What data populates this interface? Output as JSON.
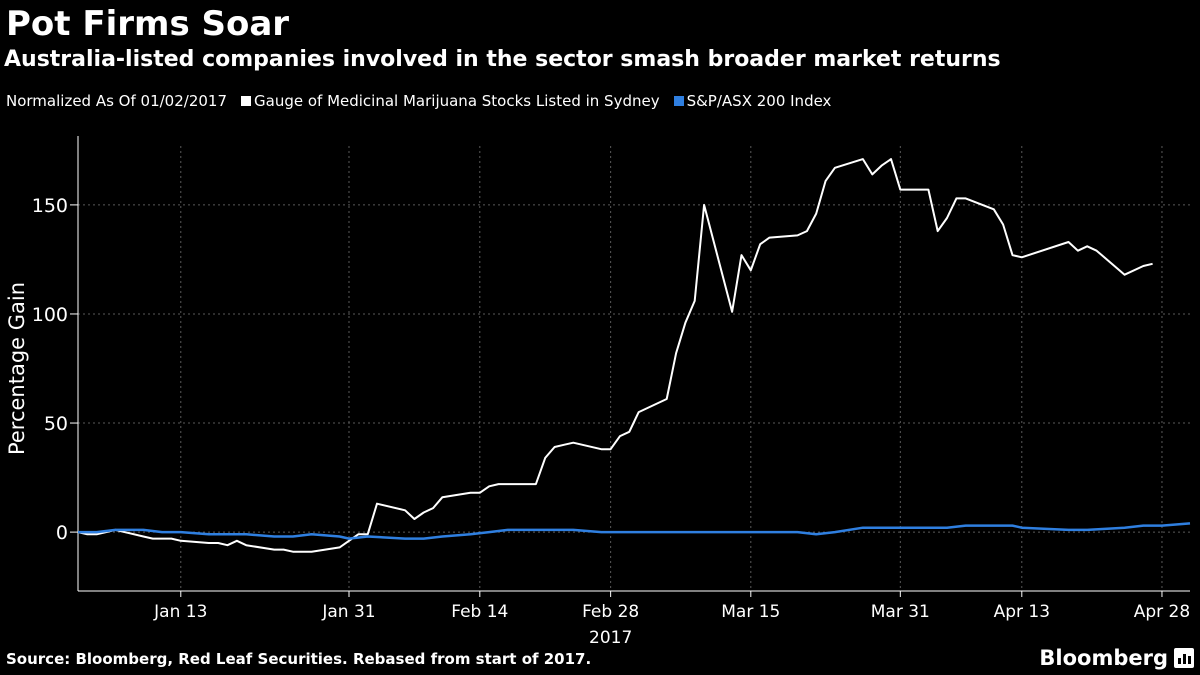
{
  "header": {
    "title": "Pot Firms Soar",
    "subtitle": "Australia-listed companies involved in the sector smash broader market returns"
  },
  "legend": {
    "note": "Normalized As Of 01/02/2017",
    "items": [
      {
        "label": "Gauge of Medicinal Marijuana Stocks Listed in Sydney",
        "color": "#ffffff"
      },
      {
        "label": "S&P/ASX 200 Index",
        "color": "#2f7fe0"
      }
    ]
  },
  "footer": {
    "source": "Source: Bloomberg, Red Leaf Securities. Rebased from start of 2017.",
    "brand": "Bloomberg",
    "brand_icon": "bloomberg-terminal-icon"
  },
  "chart_data": {
    "type": "line",
    "ylabel": "Percentage Gain",
    "xlabel": "2017",
    "ylim": [
      -27,
      177
    ],
    "yticks": [
      0,
      50,
      100,
      150
    ],
    "xlim": [
      "2017-01-02",
      "2017-05-01"
    ],
    "xticks": [
      {
        "date": "2017-01-13",
        "label": "Jan 13"
      },
      {
        "date": "2017-01-31",
        "label": "Jan 31"
      },
      {
        "date": "2017-02-14",
        "label": "Feb 14"
      },
      {
        "date": "2017-02-28",
        "label": "Feb 28"
      },
      {
        "date": "2017-03-15",
        "label": "Mar 15"
      },
      {
        "date": "2017-03-31",
        "label": "Mar 31"
      },
      {
        "date": "2017-04-13",
        "label": "Apr 13"
      },
      {
        "date": "2017-04-28",
        "label": "Apr 28"
      }
    ],
    "grid": true,
    "series": [
      {
        "name": "Gauge of Medicinal Marijuana Stocks Listed in Sydney",
        "color": "#ffffff",
        "points": [
          [
            "2017-01-02",
            0
          ],
          [
            "2017-01-03",
            -1
          ],
          [
            "2017-01-04",
            -1
          ],
          [
            "2017-01-05",
            0
          ],
          [
            "2017-01-06",
            1
          ],
          [
            "2017-01-09",
            -2
          ],
          [
            "2017-01-10",
            -3
          ],
          [
            "2017-01-11",
            -3
          ],
          [
            "2017-01-12",
            -3
          ],
          [
            "2017-01-13",
            -4
          ],
          [
            "2017-01-16",
            -5
          ],
          [
            "2017-01-17",
            -5
          ],
          [
            "2017-01-18",
            -6
          ],
          [
            "2017-01-19",
            -4
          ],
          [
            "2017-01-20",
            -6
          ],
          [
            "2017-01-23",
            -8
          ],
          [
            "2017-01-24",
            -8
          ],
          [
            "2017-01-25",
            -9
          ],
          [
            "2017-01-27",
            -9
          ],
          [
            "2017-01-30",
            -7
          ],
          [
            "2017-01-31",
            -4
          ],
          [
            "2017-02-01",
            -1
          ],
          [
            "2017-02-02",
            -1
          ],
          [
            "2017-02-03",
            13
          ],
          [
            "2017-02-06",
            10
          ],
          [
            "2017-02-07",
            6
          ],
          [
            "2017-02-08",
            9
          ],
          [
            "2017-02-09",
            11
          ],
          [
            "2017-02-10",
            16
          ],
          [
            "2017-02-13",
            18
          ],
          [
            "2017-02-14",
            18
          ],
          [
            "2017-02-15",
            21
          ],
          [
            "2017-02-16",
            22
          ],
          [
            "2017-02-17",
            22
          ],
          [
            "2017-02-20",
            22
          ],
          [
            "2017-02-21",
            34
          ],
          [
            "2017-02-22",
            39
          ],
          [
            "2017-02-23",
            40
          ],
          [
            "2017-02-24",
            41
          ],
          [
            "2017-02-27",
            38
          ],
          [
            "2017-02-28",
            38
          ],
          [
            "2017-03-01",
            44
          ],
          [
            "2017-03-02",
            46
          ],
          [
            "2017-03-03",
            55
          ],
          [
            "2017-03-06",
            61
          ],
          [
            "2017-03-07",
            82
          ],
          [
            "2017-03-08",
            96
          ],
          [
            "2017-03-09",
            106
          ],
          [
            "2017-03-10",
            150
          ],
          [
            "2017-03-13",
            101
          ],
          [
            "2017-03-14",
            127
          ],
          [
            "2017-03-15",
            120
          ],
          [
            "2017-03-16",
            132
          ],
          [
            "2017-03-17",
            135
          ],
          [
            "2017-03-20",
            136
          ],
          [
            "2017-03-21",
            138
          ],
          [
            "2017-03-22",
            146
          ],
          [
            "2017-03-23",
            161
          ],
          [
            "2017-03-24",
            167
          ],
          [
            "2017-03-27",
            171
          ],
          [
            "2017-03-28",
            164
          ],
          [
            "2017-03-29",
            168
          ],
          [
            "2017-03-30",
            171
          ],
          [
            "2017-03-31",
            157
          ],
          [
            "2017-04-03",
            157
          ],
          [
            "2017-04-04",
            138
          ],
          [
            "2017-04-05",
            144
          ],
          [
            "2017-04-06",
            153
          ],
          [
            "2017-04-07",
            153
          ],
          [
            "2017-04-10",
            148
          ],
          [
            "2017-04-11",
            141
          ],
          [
            "2017-04-12",
            127
          ],
          [
            "2017-04-13",
            126
          ],
          [
            "2017-04-18",
            133
          ],
          [
            "2017-04-19",
            129
          ],
          [
            "2017-04-20",
            131
          ],
          [
            "2017-04-21",
            129
          ],
          [
            "2017-04-24",
            118
          ],
          [
            "2017-04-26",
            122
          ],
          [
            "2017-04-27",
            123
          ]
        ]
      },
      {
        "name": "S&P/ASX 200 Index",
        "color": "#2f7fe0",
        "points": [
          [
            "2017-01-02",
            0
          ],
          [
            "2017-01-04",
            0
          ],
          [
            "2017-01-06",
            1
          ],
          [
            "2017-01-09",
            1
          ],
          [
            "2017-01-11",
            0
          ],
          [
            "2017-01-13",
            0
          ],
          [
            "2017-01-16",
            -1
          ],
          [
            "2017-01-18",
            -1
          ],
          [
            "2017-01-20",
            -1
          ],
          [
            "2017-01-23",
            -2
          ],
          [
            "2017-01-25",
            -2
          ],
          [
            "2017-01-27",
            -1
          ],
          [
            "2017-01-30",
            -2
          ],
          [
            "2017-01-31",
            -3
          ],
          [
            "2017-02-02",
            -2
          ],
          [
            "2017-02-06",
            -3
          ],
          [
            "2017-02-08",
            -3
          ],
          [
            "2017-02-10",
            -2
          ],
          [
            "2017-02-13",
            -1
          ],
          [
            "2017-02-15",
            0
          ],
          [
            "2017-02-17",
            1
          ],
          [
            "2017-02-20",
            1
          ],
          [
            "2017-02-22",
            1
          ],
          [
            "2017-02-24",
            1
          ],
          [
            "2017-02-27",
            0
          ],
          [
            "2017-02-28",
            0
          ],
          [
            "2017-03-02",
            0
          ],
          [
            "2017-03-06",
            0
          ],
          [
            "2017-03-08",
            0
          ],
          [
            "2017-03-10",
            0
          ],
          [
            "2017-03-13",
            0
          ],
          [
            "2017-03-15",
            0
          ],
          [
            "2017-03-17",
            0
          ],
          [
            "2017-03-20",
            0
          ],
          [
            "2017-03-22",
            -1
          ],
          [
            "2017-03-24",
            0
          ],
          [
            "2017-03-27",
            2
          ],
          [
            "2017-03-29",
            2
          ],
          [
            "2017-03-31",
            2
          ],
          [
            "2017-04-03",
            2
          ],
          [
            "2017-04-05",
            2
          ],
          [
            "2017-04-07",
            3
          ],
          [
            "2017-04-10",
            3
          ],
          [
            "2017-04-12",
            3
          ],
          [
            "2017-04-13",
            2
          ],
          [
            "2017-04-18",
            1
          ],
          [
            "2017-04-20",
            1
          ],
          [
            "2017-04-24",
            2
          ],
          [
            "2017-04-26",
            3
          ],
          [
            "2017-04-28",
            3
          ],
          [
            "2017-05-01",
            4
          ]
        ]
      }
    ]
  }
}
